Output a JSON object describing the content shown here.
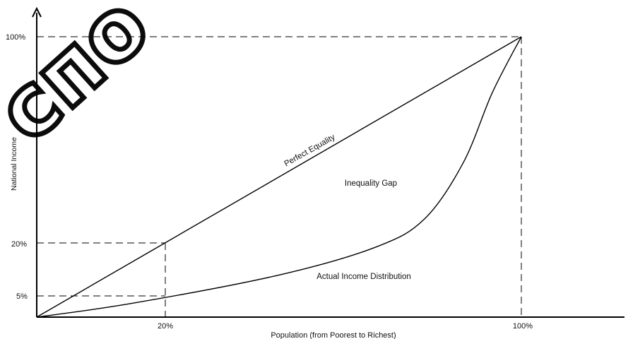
{
  "watermark": {
    "text": "спо",
    "color": "#000000"
  },
  "axes": {
    "x_label": "Population (from Poorest to Richest)",
    "y_label": "National Income",
    "x_ticks": [
      "20%",
      "100%"
    ],
    "y_ticks": [
      "100%",
      "20%",
      "5%"
    ],
    "color": "#000000"
  },
  "annotations": {
    "perfect_equality": "Perfect Equality",
    "inequality_gap": "Inequality Gap",
    "actual_income": "Actual Income Distribution"
  },
  "chart_data": {
    "type": "line",
    "title": "",
    "xlabel": "Population (from Poorest to Richest)",
    "ylabel": "National Income",
    "xlim": [
      0,
      100
    ],
    "ylim": [
      0,
      100
    ],
    "series": [
      {
        "name": "Perfect Equality",
        "x": [
          0,
          20,
          100
        ],
        "y": [
          0,
          20,
          100
        ]
      },
      {
        "name": "Actual Income Distribution",
        "x": [
          0,
          20,
          50,
          70,
          80,
          88,
          94,
          100
        ],
        "y": [
          0,
          5,
          15,
          25,
          35,
          55,
          80,
          100
        ]
      }
    ],
    "reference_points": [
      {
        "x": 20,
        "y": 20
      },
      {
        "x": 20,
        "y": 5
      },
      {
        "x": 100,
        "y": 100
      }
    ]
  }
}
